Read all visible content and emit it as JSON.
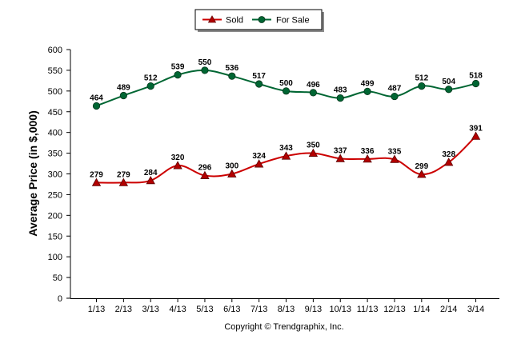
{
  "chart_data": {
    "type": "line",
    "ylabel": "Average Price (in $,000)",
    "categories": [
      "1/13",
      "2/13",
      "3/13",
      "4/13",
      "5/13",
      "6/13",
      "7/13",
      "8/13",
      "9/13",
      "10/13",
      "11/13",
      "12/13",
      "1/14",
      "2/14",
      "3/14"
    ],
    "ylim": [
      0,
      600
    ],
    "yticks": [
      0,
      50,
      100,
      150,
      200,
      250,
      300,
      350,
      400,
      450,
      500,
      550,
      600
    ],
    "series": [
      {
        "name": "Sold",
        "color": "#cc0000",
        "marker": "triangle",
        "values": [
          279,
          279,
          284,
          320,
          296,
          300,
          324,
          343,
          350,
          337,
          336,
          335,
          299,
          328,
          391
        ]
      },
      {
        "name": "For Sale",
        "color": "#006633",
        "marker": "circle",
        "values": [
          464,
          489,
          512,
          539,
          550,
          536,
          517,
          500,
          496,
          483,
          499,
          487,
          512,
          504,
          518
        ]
      }
    ],
    "legend": "top-center",
    "grid": false
  },
  "footer": "Copyright © Trendgraphix, Inc."
}
